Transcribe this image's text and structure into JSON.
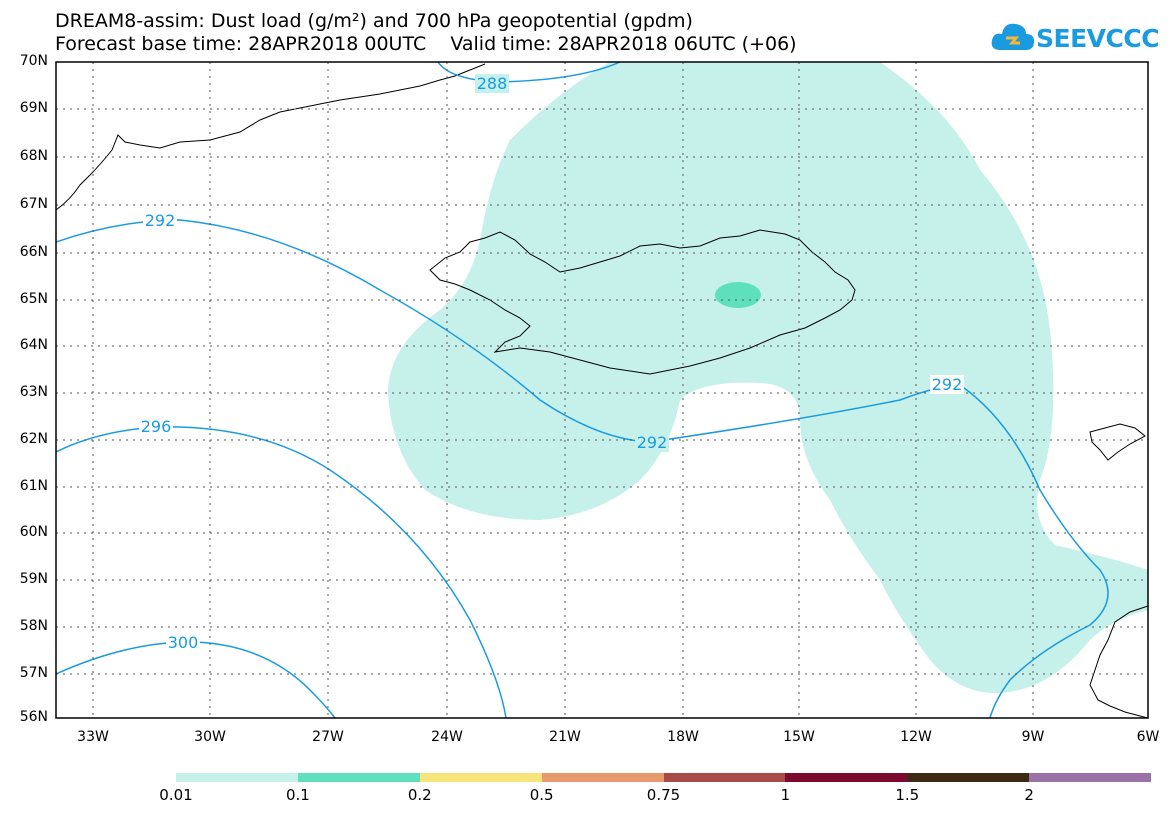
{
  "header": {
    "title_line1": "DREAM8-assim: Dust load (g/m²) and 700 hPa geopotential (gpdm)",
    "title_line2": "Forecast base time: 28APR2018 00UTC    Valid time: 28APR2018 06UTC (+06)",
    "logo_text": "SEEVCCC"
  },
  "chart_data": {
    "type": "map",
    "lat_labels": [
      "70N",
      "69N",
      "68N",
      "67N",
      "66N",
      "65N",
      "64N",
      "63N",
      "62N",
      "61N",
      "60N",
      "59N",
      "58N",
      "57N",
      "56N"
    ],
    "lon_labels": [
      "33W",
      "30W",
      "27W",
      "24W",
      "21W",
      "18W",
      "15W",
      "12W",
      "9W",
      "6W"
    ],
    "contours": [
      {
        "label": "288"
      },
      {
        "label": "292"
      },
      {
        "label": "292"
      },
      {
        "label": "292"
      },
      {
        "label": "296"
      },
      {
        "label": "300"
      }
    ],
    "colorbar": {
      "labels": [
        "0.01",
        "0.1",
        "0.2",
        "0.5",
        "0.75",
        "1",
        "1.5",
        "2"
      ],
      "colors": [
        "#c6f0ea",
        "#5fe0bd",
        "#f7e47a",
        "#e79a6e",
        "#a84b46",
        "#7c0a2e",
        "#3d2a14",
        "#9a72a8"
      ]
    },
    "colors": {
      "dust_light": "#c6f0ea",
      "dust_mid": "#5fe0bd",
      "contour": "#1a9be0",
      "coast": "#000000"
    }
  }
}
